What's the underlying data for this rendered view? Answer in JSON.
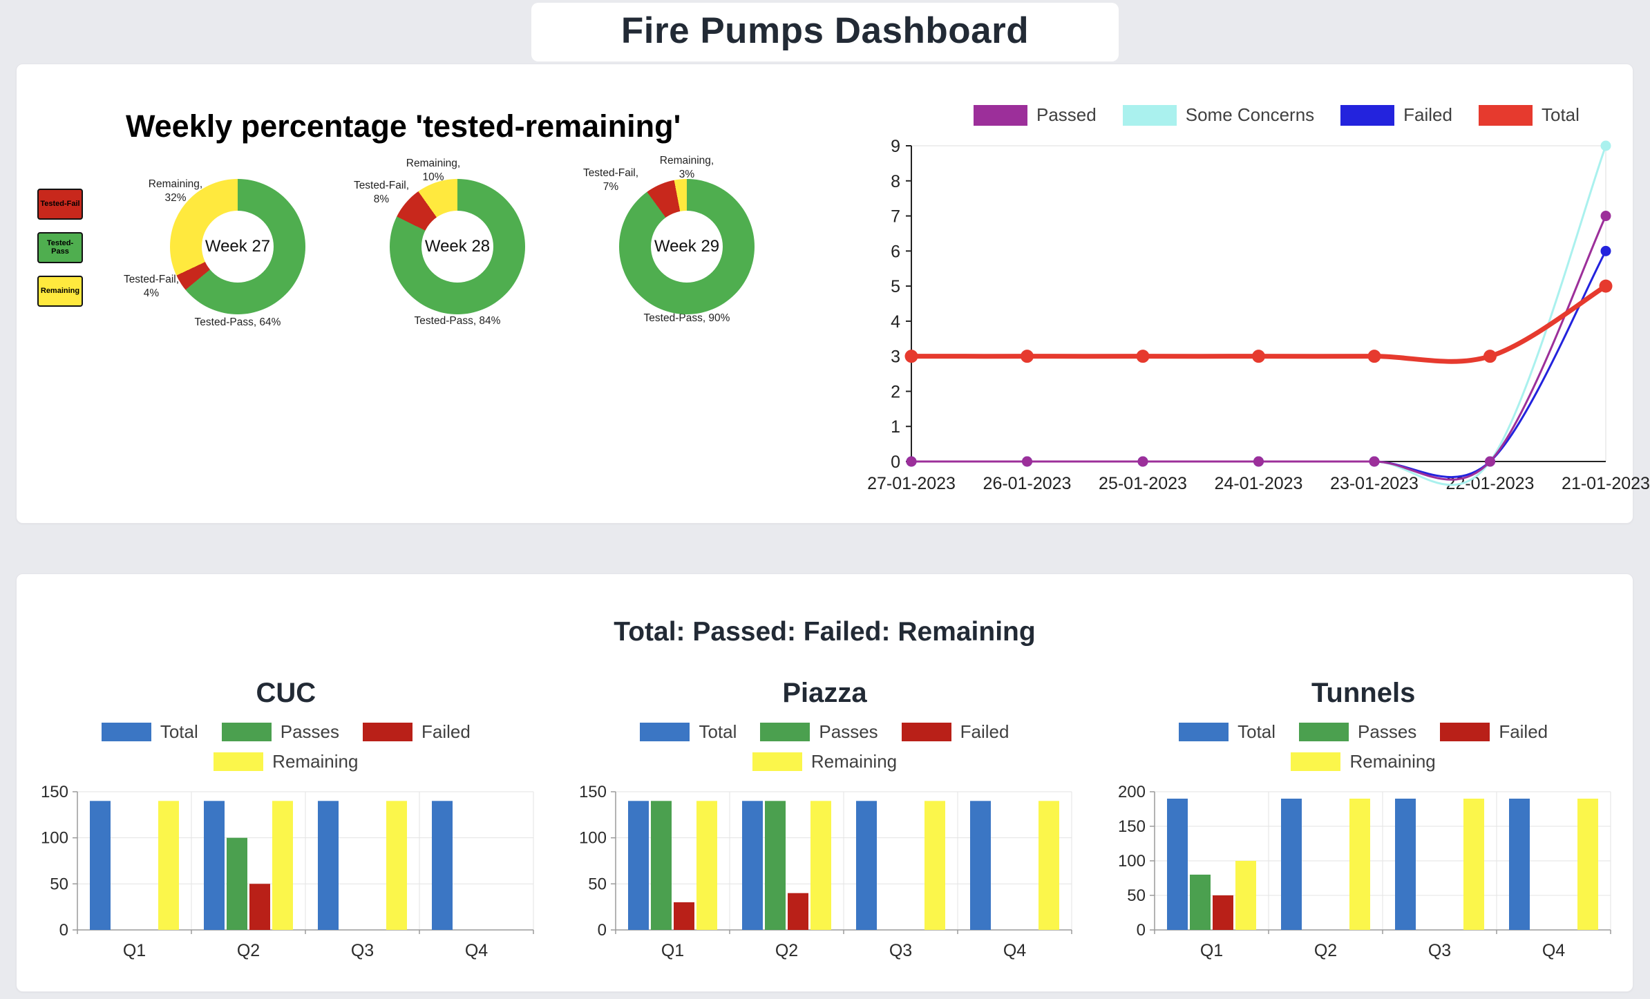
{
  "header": {
    "title": "Fire Pumps Dashboard"
  },
  "bottom_panel": {
    "title": "Total: Passed: Failed: Remaining"
  },
  "chart_data": [
    {
      "id": "weekly-donuts",
      "type": "pie",
      "title": "Weekly percentage 'tested-remaining'",
      "legend": [
        {
          "label": "Tested-Fail",
          "color": "#c8281c"
        },
        {
          "label": "Tested-Pass",
          "color": "#4fae4f"
        },
        {
          "label": "Remaining",
          "color": "#ffe93e"
        }
      ],
      "slice_colors": {
        "Tested-Pass": "#4fae4f",
        "Tested-Fail": "#c8281c",
        "Remaining": "#ffe93e"
      },
      "donuts": [
        {
          "center_label": "Week 27",
          "slices": [
            {
              "name": "Tested-Pass",
              "value": 64,
              "label": "Tested-Pass, 64%"
            },
            {
              "name": "Tested-Fail",
              "value": 4,
              "label": "Tested-Fail,\n4%"
            },
            {
              "name": "Remaining",
              "value": 32,
              "label": "Remaining,\n32%"
            }
          ]
        },
        {
          "center_label": "Week 28",
          "slices": [
            {
              "name": "Tested-Pass",
              "value": 84,
              "label": "Tested-Pass, 84%"
            },
            {
              "name": "Tested-Fail",
              "value": 8,
              "label": "Tested-Fail,\n8%"
            },
            {
              "name": "Remaining",
              "value": 10,
              "label": "Remaining,\n10%"
            }
          ]
        },
        {
          "center_label": "Week 29",
          "slices": [
            {
              "name": "Tested-Pass",
              "value": 90,
              "label": "Tested-Pass, 90%"
            },
            {
              "name": "Tested-Fail",
              "value": 7,
              "label": "Tested-Fail,\n7%"
            },
            {
              "name": "Remaining",
              "value": 3,
              "label": "Remaining,\n3%"
            }
          ]
        }
      ]
    },
    {
      "id": "trend-line",
      "type": "line",
      "x": [
        "27-01-2023",
        "26-01-2023",
        "25-01-2023",
        "24-01-2023",
        "23-01-2023",
        "22-01-2023",
        "21-01-2023"
      ],
      "series": [
        {
          "name": "Passed",
          "color": "#9c2f9a",
          "values": [
            0,
            0,
            0,
            0,
            0,
            0,
            7
          ],
          "width": 3
        },
        {
          "name": "Some Concerns",
          "color": "#aaf1ee",
          "values": [
            0,
            0,
            0,
            0,
            0,
            0,
            9
          ],
          "width": 3
        },
        {
          "name": "Failed",
          "color": "#2323dd",
          "values": [
            0,
            0,
            0,
            0,
            0,
            0,
            6
          ],
          "width": 3
        },
        {
          "name": "Total",
          "color": "#e63a2e",
          "values": [
            3,
            3,
            3,
            3,
            3,
            3,
            5
          ],
          "width": 7
        }
      ],
      "ylim": [
        0,
        9
      ],
      "yticks": [
        0,
        1,
        2,
        3,
        4,
        5,
        6,
        7,
        8,
        9
      ],
      "legend_position": "top",
      "grid": false
    },
    {
      "id": "bar-cuc",
      "type": "bar",
      "title": "CUC",
      "categories": [
        "Q1",
        "Q2",
        "Q3",
        "Q4"
      ],
      "series": [
        {
          "name": "Total",
          "color": "#3b76c4",
          "values": [
            140,
            140,
            140,
            140
          ]
        },
        {
          "name": "Passes",
          "color": "#4ba04f",
          "values": [
            0,
            100,
            0,
            0
          ]
        },
        {
          "name": "Failed",
          "color": "#b92018",
          "values": [
            0,
            50,
            0,
            0
          ]
        },
        {
          "name": "Remaining",
          "color": "#fbf64b",
          "values": [
            140,
            140,
            140,
            0
          ]
        }
      ],
      "ylim": [
        0,
        150
      ],
      "yticks": [
        0,
        50,
        100,
        150
      ]
    },
    {
      "id": "bar-piazza",
      "type": "bar",
      "title": "Piazza",
      "categories": [
        "Q1",
        "Q2",
        "Q3",
        "Q4"
      ],
      "series": [
        {
          "name": "Total",
          "color": "#3b76c4",
          "values": [
            140,
            140,
            140,
            140
          ]
        },
        {
          "name": "Passes",
          "color": "#4ba04f",
          "values": [
            140,
            140,
            0,
            0
          ]
        },
        {
          "name": "Failed",
          "color": "#b92018",
          "values": [
            30,
            40,
            0,
            0
          ]
        },
        {
          "name": "Remaining",
          "color": "#fbf64b",
          "values": [
            140,
            140,
            140,
            140
          ]
        }
      ],
      "ylim": [
        0,
        150
      ],
      "yticks": [
        0,
        50,
        100,
        150
      ]
    },
    {
      "id": "bar-tunnels",
      "type": "bar",
      "title": "Tunnels",
      "categories": [
        "Q1",
        "Q2",
        "Q3",
        "Q4"
      ],
      "series": [
        {
          "name": "Total",
          "color": "#3b76c4",
          "values": [
            190,
            190,
            190,
            190
          ]
        },
        {
          "name": "Passes",
          "color": "#4ba04f",
          "values": [
            80,
            0,
            0,
            0
          ]
        },
        {
          "name": "Failed",
          "color": "#b92018",
          "values": [
            50,
            0,
            0,
            0
          ]
        },
        {
          "name": "Remaining",
          "color": "#fbf64b",
          "values": [
            100,
            190,
            190,
            190
          ]
        }
      ],
      "ylim": [
        0,
        200
      ],
      "yticks": [
        0,
        50,
        100,
        150,
        200
      ]
    }
  ]
}
